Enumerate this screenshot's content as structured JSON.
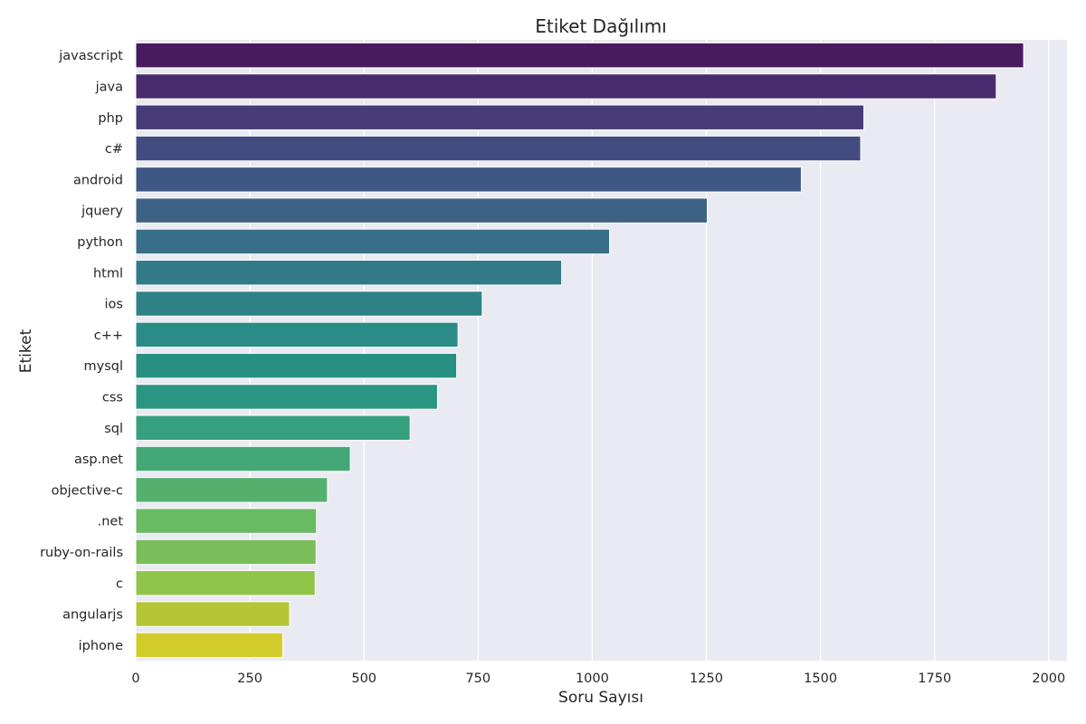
{
  "chart_data": {
    "type": "bar",
    "orientation": "horizontal",
    "title": "Etiket Dağılımı",
    "xlabel": "Soru Sayısı",
    "ylabel": "Etiket",
    "xlim": [
      0,
      2040
    ],
    "xticks": [
      0,
      250,
      500,
      750,
      1000,
      1250,
      1500,
      1750,
      2000
    ],
    "xtick_labels": [
      "0",
      "250",
      "500",
      "750",
      "1000",
      "1250",
      "1500",
      "1750",
      "2000"
    ],
    "grid": true,
    "categories": [
      "javascript",
      "java",
      "php",
      "c#",
      "android",
      "jquery",
      "python",
      "html",
      "ios",
      "c++",
      "mysql",
      "css",
      "sql",
      "asp.net",
      "objective-c",
      ".net",
      "ruby-on-rails",
      "c",
      "angularjs",
      "iphone"
    ],
    "values": [
      1945,
      1885,
      1595,
      1588,
      1458,
      1252,
      1038,
      933,
      759,
      706,
      703,
      661,
      601,
      470,
      420,
      396,
      395,
      393,
      337,
      322
    ],
    "colors": [
      "#471b5e",
      "#482b6e",
      "#473c79",
      "#434c80",
      "#3f5784",
      "#3c6386",
      "#386f88",
      "#337a88",
      "#2e8287",
      "#2b8b86",
      "#288f83",
      "#2a9581",
      "#359f7e",
      "#44a876",
      "#54b16d",
      "#6aba64",
      "#79be5a",
      "#91c54a",
      "#b4c636",
      "#d1cc2a"
    ],
    "background": "#eaeaf2",
    "gridline_color": "#ffffff",
    "bar_edge_color": "#ffffff"
  }
}
